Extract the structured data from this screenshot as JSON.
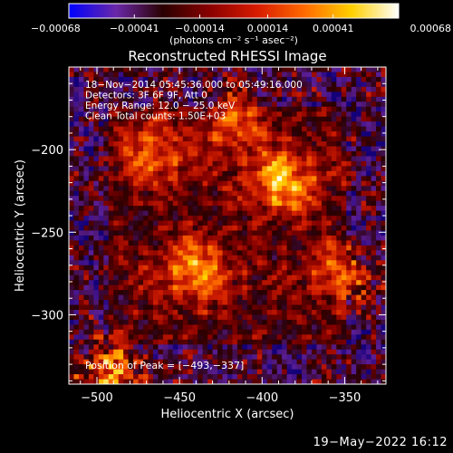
{
  "chart_data": {
    "type": "heatmap",
    "title": "Reconstructed RHESSI Image",
    "xlabel": "Heliocentric X (arcsec)",
    "ylabel": "Heliocentric Y (arcsec)",
    "xlim": [
      -517,
      -325
    ],
    "ylim": [
      -342,
      -150
    ],
    "x_ticks": [
      -500,
      -450,
      -400,
      -350
    ],
    "y_ticks": [
      -200,
      -250,
      -300
    ],
    "x_tick_labels": [
      "−500",
      "−450",
      "−400",
      "−350"
    ],
    "y_tick_labels": [
      "−200",
      "−250",
      "−300"
    ],
    "colorbar": {
      "min": -0.00068,
      "max": 0.00068,
      "ticks": [
        -0.00068,
        -0.00041,
        -0.00014,
        0.00014,
        0.00041,
        0.00068
      ],
      "tick_labels": [
        "−0.00068",
        "−0.00041",
        "−0.00014",
        "0.00014",
        "0.00041",
        "0.00068"
      ],
      "unit_label": "(photons cm⁻² s⁻¹ asec⁻²)",
      "colormap": [
        "#0000ff",
        "#6a28a8",
        "#2a0000",
        "#8b0000",
        "#d81b00",
        "#ff6a00",
        "#ffd000",
        "#ffffff"
      ]
    },
    "annotations": [
      "18−Nov−2014 05:45:36.000 to 05:49:16.000",
      "Detectors: 3F 6F 9F, Att 0",
      "Energy Range: 12.0 − 25.0 keV",
      "Clean    Total counts: 1.50E+03"
    ],
    "peak_label": "Position of Peak = [−493,−337]",
    "peak": [
      -493,
      -337
    ],
    "bright_regions": [
      {
        "x": -388,
        "y": -220,
        "level": 0.98
      },
      {
        "x": -493,
        "y": -337,
        "level": 1.0
      },
      {
        "x": -440,
        "y": -272,
        "level": 0.85
      },
      {
        "x": -465,
        "y": -200,
        "level": 0.7
      },
      {
        "x": -415,
        "y": -185,
        "level": 0.7
      },
      {
        "x": -350,
        "y": -275,
        "level": 0.65
      }
    ]
  },
  "footer_date": "19−May−2022 16:12"
}
